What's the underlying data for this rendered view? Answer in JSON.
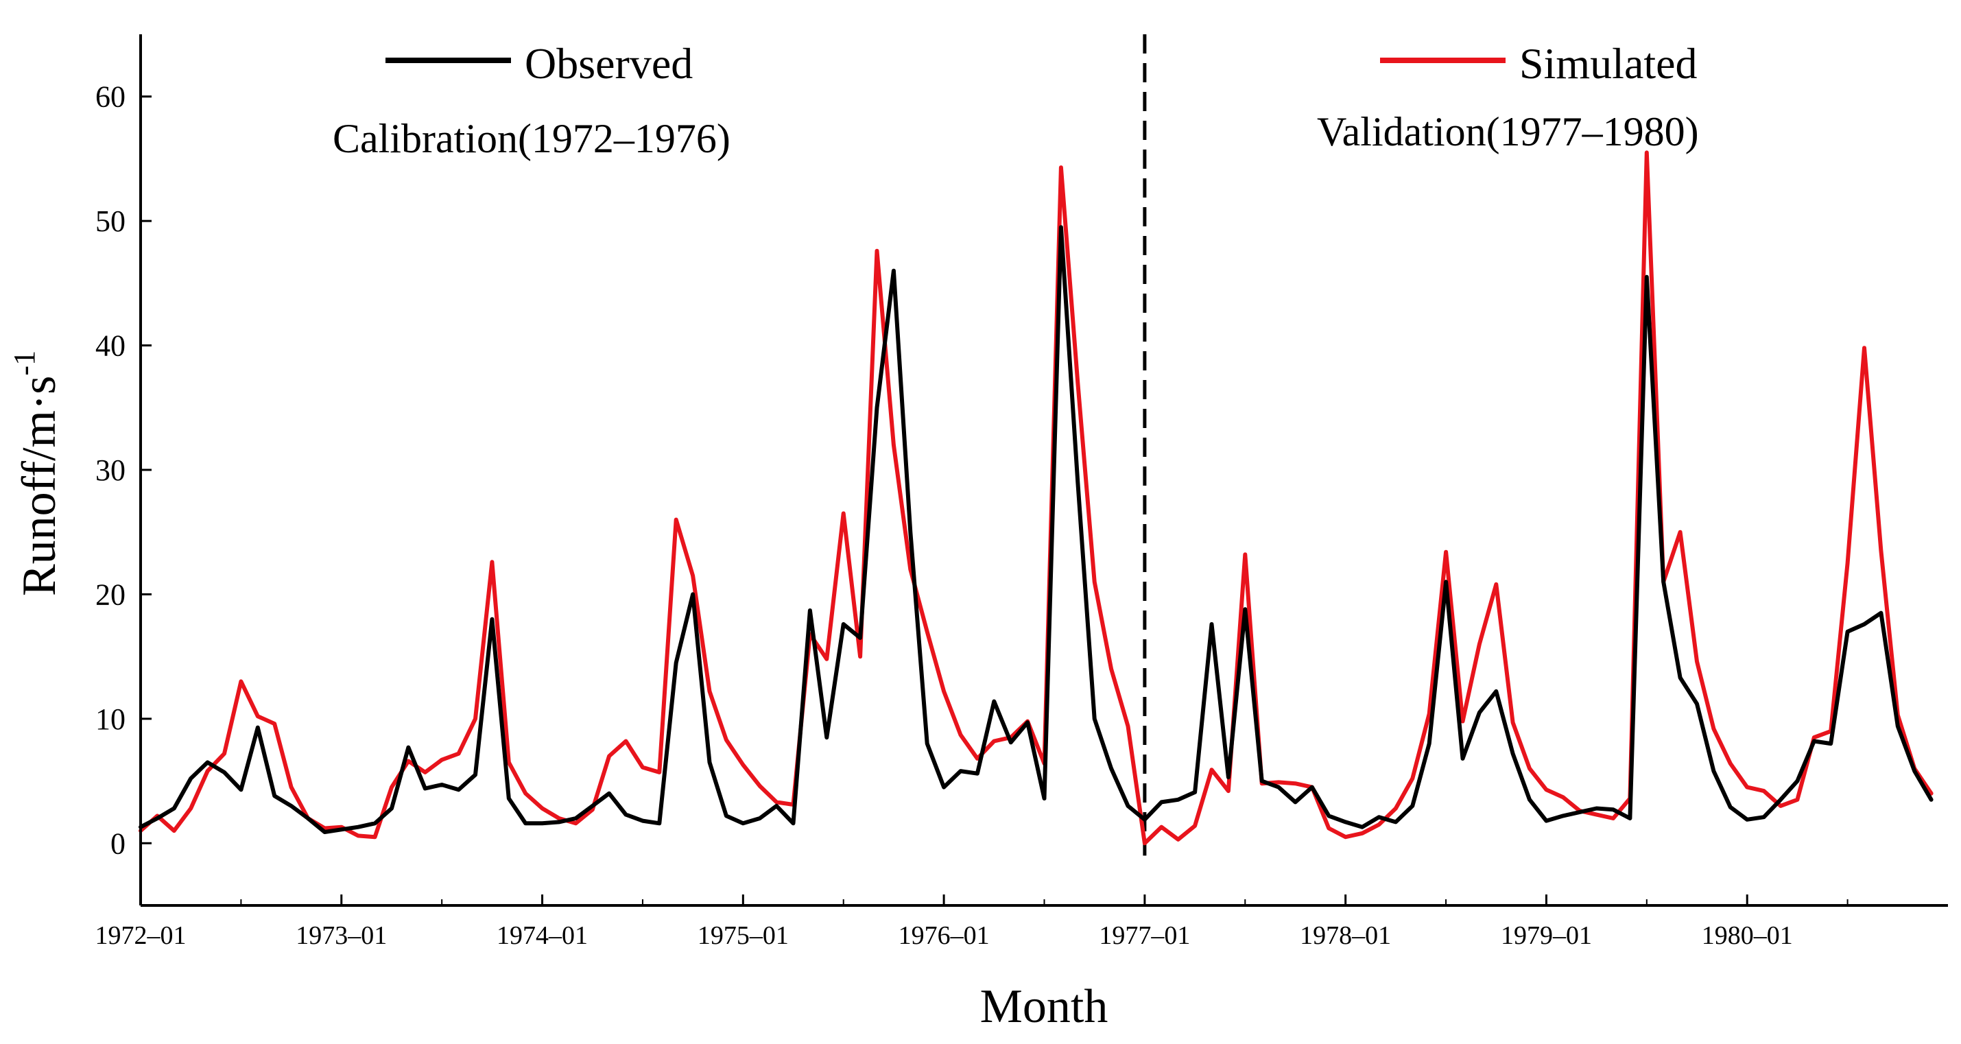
{
  "chart_data": {
    "type": "line",
    "xlabel": "Month",
    "ylabel": "Runoff/m·s",
    "ylabel_sup": "-1",
    "ylim": [
      -5,
      65
    ],
    "yticks": [
      0,
      10,
      20,
      30,
      40,
      50,
      60
    ],
    "x_start": "1972-01",
    "n_months": 108,
    "xtick_labels": [
      "1972–01",
      "1973–01",
      "1974–01",
      "1975–01",
      "1976–01",
      "1977–01",
      "1978–01",
      "1979–01",
      "1980–01"
    ],
    "xtick_positions": [
      0,
      12,
      24,
      36,
      48,
      60,
      72,
      84,
      96
    ],
    "divider_month_index": 60,
    "annotations": [
      {
        "name": "calibration",
        "text": "Calibration(1972–1976)"
      },
      {
        "name": "validation",
        "text": "Validation(1977–1980)"
      }
    ],
    "legend": [
      {
        "name": "Observed",
        "color": "#000000"
      },
      {
        "name": "Simulated",
        "color": "#e8141c"
      }
    ],
    "series": [
      {
        "name": "Observed",
        "color": "#000000",
        "values": [
          1.3,
          2.0,
          2.8,
          5.2,
          6.5,
          5.7,
          4.3,
          9.3,
          3.8,
          3.0,
          2.0,
          0.9,
          1.1,
          1.3,
          1.6,
          2.8,
          7.7,
          4.4,
          4.7,
          4.3,
          5.5,
          18.0,
          3.6,
          1.6,
          1.6,
          1.7,
          2.0,
          3.0,
          4.0,
          2.3,
          1.8,
          1.6,
          14.5,
          20.0,
          6.5,
          2.2,
          1.6,
          2.0,
          3.0,
          1.6,
          18.7,
          8.5,
          17.6,
          16.5,
          35.0,
          46.0,
          25.0,
          8.0,
          4.5,
          5.8,
          5.6,
          11.4,
          8.1,
          9.7,
          3.6,
          49.5,
          29.0,
          10.0,
          6.0,
          3.0,
          1.9,
          3.3,
          3.5,
          4.1,
          17.6,
          5.3,
          18.8,
          5.0,
          4.5,
          3.3,
          4.5,
          2.2,
          1.7,
          1.3,
          2.1,
          1.7,
          3.0,
          8.0,
          21.0,
          6.8,
          10.5,
          12.2,
          7.2,
          3.5,
          1.8,
          2.2,
          2.5,
          2.8,
          2.7,
          2.0,
          45.5,
          21.0,
          13.3,
          11.2,
          5.8,
          2.9,
          1.9,
          2.1,
          3.5,
          5.0,
          8.2,
          8.0,
          17.0,
          17.6,
          18.5,
          9.4,
          5.8,
          3.5
        ]
      },
      {
        "name": "Simulated",
        "color": "#e8141c",
        "values": [
          1.0,
          2.2,
          1.0,
          2.8,
          5.8,
          7.2,
          13.0,
          10.2,
          9.6,
          4.5,
          2.0,
          1.2,
          1.3,
          0.6,
          0.5,
          4.5,
          6.6,
          5.7,
          6.7,
          7.2,
          10.0,
          22.6,
          6.5,
          4.0,
          2.8,
          2.0,
          1.6,
          2.7,
          7.0,
          8.2,
          6.1,
          5.7,
          26.0,
          21.5,
          12.2,
          8.3,
          6.3,
          4.6,
          3.3,
          3.1,
          16.8,
          14.8,
          26.5,
          15.0,
          47.6,
          32.0,
          22.0,
          17.0,
          12.2,
          8.7,
          6.8,
          8.2,
          8.5,
          9.8,
          6.4,
          54.3,
          37.0,
          21.0,
          14.0,
          9.4,
          0.0,
          1.3,
          0.3,
          1.4,
          5.9,
          4.2,
          23.2,
          4.8,
          4.9,
          4.8,
          4.5,
          1.2,
          0.5,
          0.8,
          1.5,
          2.8,
          5.2,
          10.4,
          23.4,
          9.8,
          16.0,
          20.8,
          9.7,
          6.0,
          4.3,
          3.7,
          2.6,
          2.3,
          2.0,
          3.6,
          55.5,
          21.0,
          25.0,
          14.6,
          9.2,
          6.4,
          4.5,
          4.2,
          3.0,
          3.5,
          8.5,
          9.0,
          22.5,
          39.8,
          23.5,
          10.3,
          6.0,
          4.0
        ]
      }
    ]
  }
}
